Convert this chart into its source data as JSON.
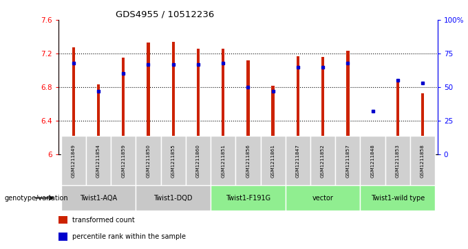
{
  "title": "GDS4955 / 10512236",
  "samples": [
    "GSM1211849",
    "GSM1211854",
    "GSM1211859",
    "GSM1211850",
    "GSM1211855",
    "GSM1211860",
    "GSM1211851",
    "GSM1211856",
    "GSM1211861",
    "GSM1211847",
    "GSM1211852",
    "GSM1211857",
    "GSM1211848",
    "GSM1211853",
    "GSM1211858"
  ],
  "groups_info": [
    {
      "label": "Twist1-AQA",
      "indices": [
        0,
        1,
        2
      ],
      "color": "#c8c8c8"
    },
    {
      "label": "Twist1-DQD",
      "indices": [
        3,
        4,
        5
      ],
      "color": "#c8c8c8"
    },
    {
      "label": "Twist1-F191G",
      "indices": [
        6,
        7,
        8
      ],
      "color": "#90ee90"
    },
    {
      "label": "vector",
      "indices": [
        9,
        10,
        11
      ],
      "color": "#90ee90"
    },
    {
      "label": "Twist1-wild type",
      "indices": [
        12,
        13,
        14
      ],
      "color": "#90ee90"
    }
  ],
  "sample_bg_color": "#d0d0d0",
  "bar_values": [
    7.27,
    6.83,
    7.15,
    7.33,
    7.34,
    7.26,
    7.26,
    7.12,
    6.82,
    7.17,
    7.16,
    7.23,
    6.04,
    6.87,
    6.73
  ],
  "percentile_values": [
    68,
    47,
    60,
    67,
    67,
    67,
    68,
    50,
    47,
    65,
    65,
    68,
    32,
    55,
    53
  ],
  "bar_color": "#cc2200",
  "dot_color": "#0000cc",
  "ylim_left": [
    6.0,
    7.6
  ],
  "ylim_right": [
    0,
    100
  ],
  "yticks_left": [
    6.0,
    6.4,
    6.8,
    7.2,
    7.6
  ],
  "yticks_right": [
    0,
    25,
    50,
    75,
    100
  ],
  "grid_values": [
    6.4,
    6.8,
    7.2
  ],
  "legend_red": "transformed count",
  "legend_blue": "percentile rank within the sample",
  "genotype_label": "genotype/variation",
  "bar_width": 0.12
}
